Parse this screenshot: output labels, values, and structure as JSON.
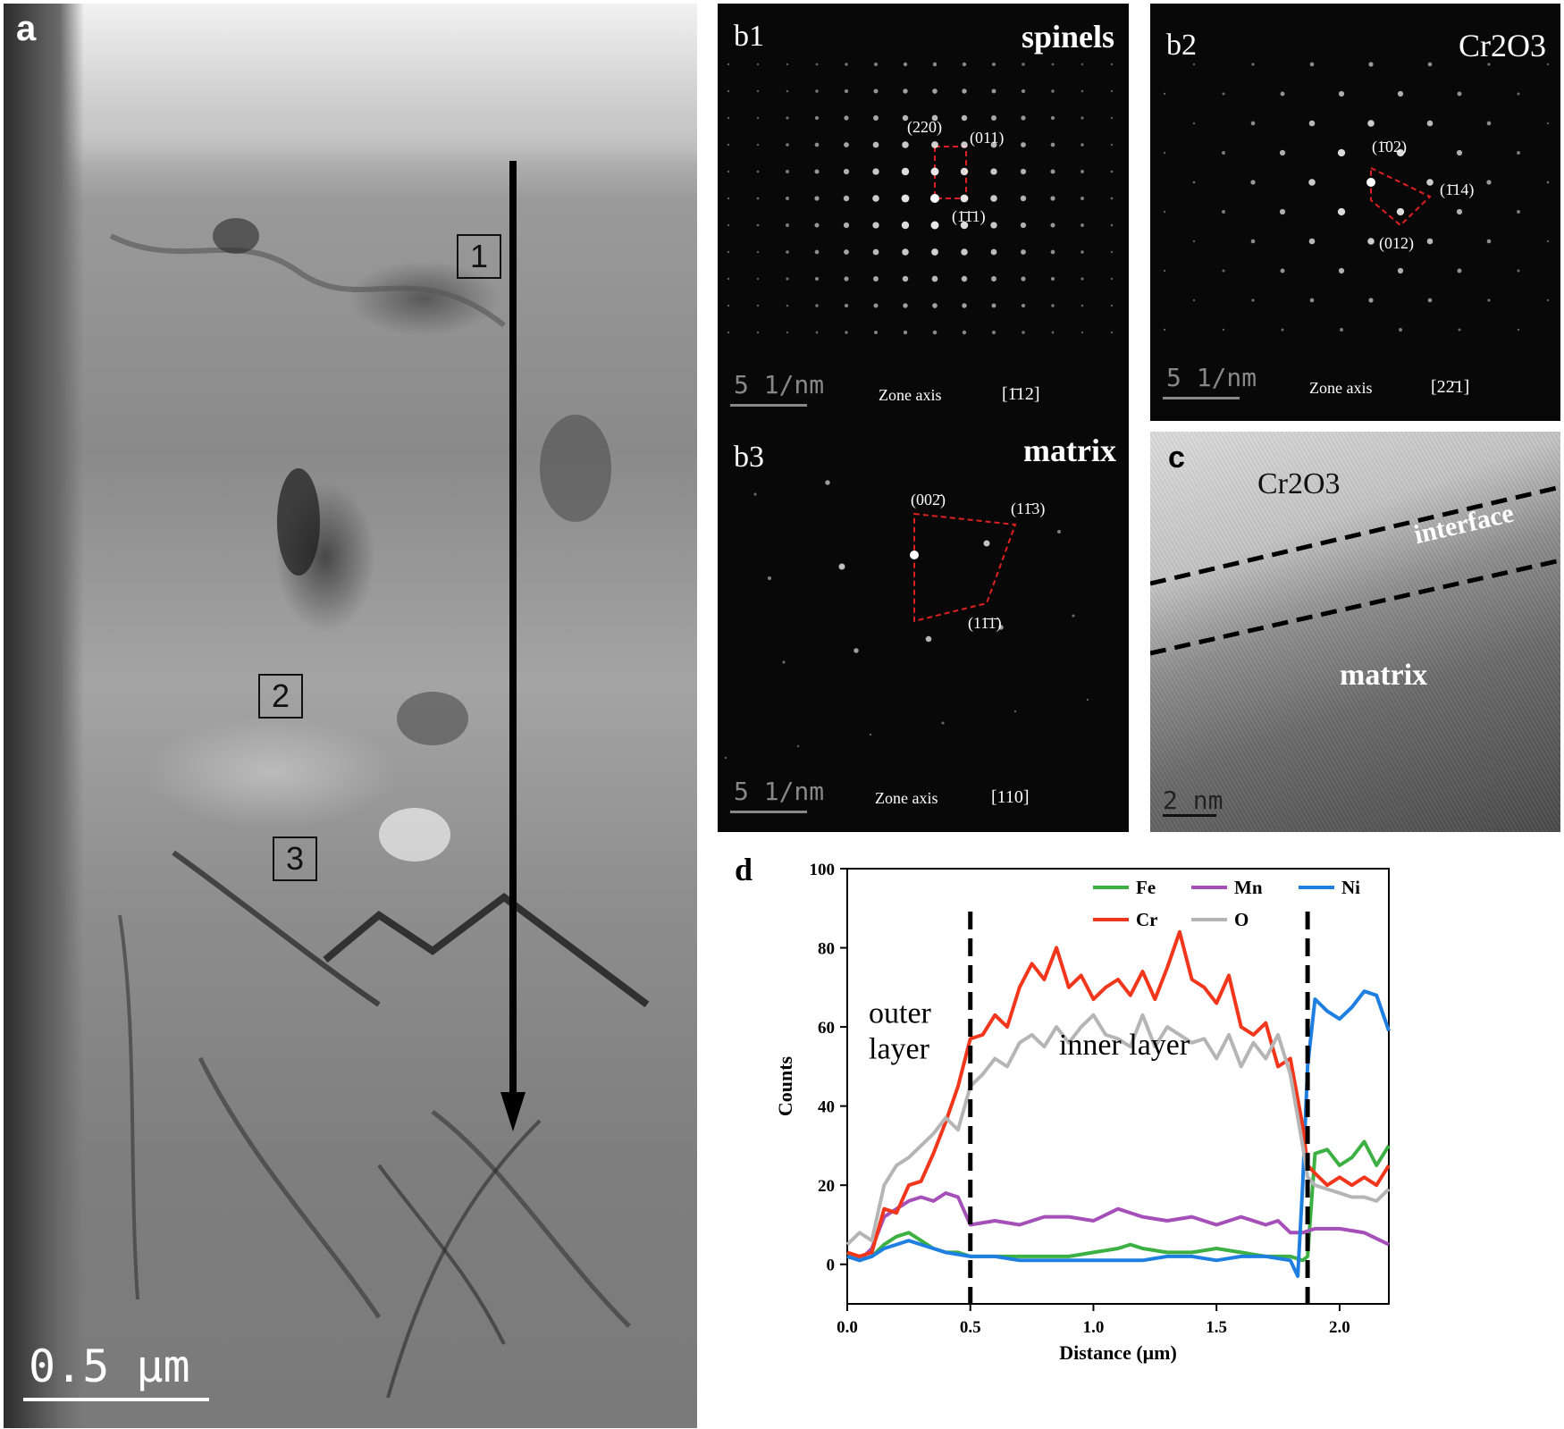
{
  "panel_a": {
    "label": "a",
    "boxes": [
      "1",
      "2",
      "3"
    ],
    "scale_bar": "0.5  μm"
  },
  "panel_b1": {
    "label": "b1",
    "title": "spinels",
    "indices": [
      "(220)",
      "(011)",
      "(1̄1̄1)"
    ],
    "zone_label": "Zone axis",
    "zone_index": "[1̄12]",
    "scale_bar": "5 1/nm"
  },
  "panel_b2": {
    "label": "b2",
    "title": "Cr2O3",
    "indices": [
      "(1̄02)",
      "(1̄14)",
      "(012)"
    ],
    "zone_label": "Zone axis",
    "zone_index": "[22̄1]",
    "scale_bar": "5 1/nm"
  },
  "panel_b3": {
    "label": "b3",
    "title": "matrix",
    "indices": [
      "(002̄)",
      "(11̄3)",
      "(11̄1̄)"
    ],
    "zone_label": "Zone axis",
    "zone_index": "[110]",
    "scale_bar": "5 1/nm"
  },
  "panel_c": {
    "label": "c",
    "top_label": "Cr2O3",
    "interface_label": "interface",
    "bottom_label": "matrix",
    "scale_bar": "2  nm"
  },
  "panel_d": {
    "label": "d",
    "region_labels": [
      "outer",
      "layer",
      "inner layer"
    ]
  },
  "chart_data": {
    "type": "line",
    "xlabel": "Distance (μm)",
    "ylabel": "Counts",
    "xlim": [
      0,
      2.2
    ],
    "ylim": [
      -10,
      100
    ],
    "xticks": [
      "0.0",
      "0.5",
      "1.0",
      "1.5",
      "2.0"
    ],
    "yticks": [
      "0",
      "20",
      "40",
      "60",
      "80",
      "100"
    ],
    "dividers": [
      0.5,
      1.87
    ],
    "legend": [
      "Fe",
      "Mn",
      "Ni",
      "Cr",
      "O"
    ],
    "legend_position": "top-right",
    "colors": {
      "Fe": "#3cb043",
      "Mn": "#a450b8",
      "Ni": "#1e7fe0",
      "Cr": "#f2361c",
      "O": "#b5b5b5"
    },
    "series": [
      {
        "name": "Fe",
        "x": [
          0,
          0.05,
          0.1,
          0.15,
          0.2,
          0.25,
          0.3,
          0.35,
          0.4,
          0.45,
          0.5,
          0.6,
          0.7,
          0.8,
          0.9,
          1.0,
          1.1,
          1.15,
          1.2,
          1.3,
          1.4,
          1.5,
          1.6,
          1.7,
          1.8,
          1.85,
          1.87,
          1.9,
          1.95,
          2.0,
          2.05,
          2.1,
          2.15,
          2.2
        ],
        "y": [
          3,
          1,
          2,
          5,
          7,
          8,
          6,
          4,
          3,
          3,
          2,
          2,
          2,
          2,
          2,
          3,
          4,
          5,
          4,
          3,
          3,
          4,
          3,
          2,
          2,
          1,
          2,
          28,
          29,
          25,
          27,
          31,
          25,
          30
        ]
      },
      {
        "name": "Mn",
        "x": [
          0,
          0.05,
          0.1,
          0.15,
          0.2,
          0.25,
          0.3,
          0.35,
          0.4,
          0.45,
          0.5,
          0.6,
          0.7,
          0.8,
          0.9,
          1.0,
          1.1,
          1.2,
          1.3,
          1.4,
          1.5,
          1.6,
          1.7,
          1.75,
          1.8,
          1.85,
          1.9,
          2.0,
          2.1,
          2.2
        ],
        "y": [
          2,
          1,
          4,
          12,
          14,
          16,
          17,
          16,
          18,
          17,
          10,
          11,
          10,
          12,
          12,
          11,
          14,
          12,
          11,
          12,
          10,
          12,
          10,
          11,
          8,
          8,
          9,
          9,
          8,
          5
        ]
      },
      {
        "name": "Ni",
        "x": [
          0,
          0.05,
          0.1,
          0.15,
          0.2,
          0.25,
          0.3,
          0.4,
          0.5,
          0.6,
          0.7,
          0.8,
          0.9,
          1.0,
          1.1,
          1.2,
          1.3,
          1.4,
          1.5,
          1.6,
          1.7,
          1.8,
          1.83,
          1.85,
          1.87,
          1.9,
          1.95,
          2.0,
          2.05,
          2.1,
          2.15,
          2.2
        ],
        "y": [
          2,
          1,
          2,
          4,
          5,
          6,
          5,
          3,
          2,
          2,
          1,
          1,
          1,
          1,
          1,
          1,
          2,
          2,
          1,
          2,
          2,
          1,
          -3,
          20,
          50,
          67,
          64,
          62,
          65,
          69,
          68,
          59
        ]
      },
      {
        "name": "Cr",
        "x": [
          0,
          0.05,
          0.1,
          0.15,
          0.2,
          0.25,
          0.3,
          0.35,
          0.4,
          0.45,
          0.5,
          0.55,
          0.6,
          0.65,
          0.7,
          0.75,
          0.8,
          0.85,
          0.9,
          0.95,
          1.0,
          1.05,
          1.1,
          1.15,
          1.2,
          1.25,
          1.3,
          1.35,
          1.4,
          1.45,
          1.5,
          1.55,
          1.6,
          1.65,
          1.7,
          1.75,
          1.8,
          1.85,
          1.87,
          1.9,
          1.95,
          2.0,
          2.05,
          2.1,
          2.15,
          2.2
        ],
        "y": [
          3,
          2,
          3,
          14,
          13,
          20,
          21,
          28,
          36,
          45,
          57,
          58,
          63,
          60,
          70,
          76,
          72,
          80,
          70,
          73,
          67,
          70,
          72,
          68,
          74,
          67,
          75,
          84,
          72,
          70,
          66,
          73,
          60,
          58,
          61,
          50,
          52,
          35,
          25,
          23,
          20,
          22,
          20,
          22,
          20,
          25
        ]
      },
      {
        "name": "O",
        "x": [
          0,
          0.05,
          0.1,
          0.15,
          0.2,
          0.25,
          0.3,
          0.35,
          0.4,
          0.45,
          0.5,
          0.55,
          0.6,
          0.65,
          0.7,
          0.75,
          0.8,
          0.85,
          0.9,
          0.95,
          1.0,
          1.05,
          1.1,
          1.15,
          1.2,
          1.25,
          1.3,
          1.35,
          1.4,
          1.45,
          1.5,
          1.55,
          1.6,
          1.65,
          1.7,
          1.75,
          1.8,
          1.85,
          1.87,
          1.9,
          1.95,
          2.0,
          2.05,
          2.1,
          2.15,
          2.2
        ],
        "y": [
          5,
          8,
          6,
          20,
          25,
          27,
          30,
          33,
          37,
          34,
          45,
          48,
          52,
          50,
          56,
          58,
          55,
          60,
          56,
          60,
          63,
          58,
          57,
          55,
          63,
          55,
          60,
          58,
          56,
          57,
          52,
          58,
          50,
          56,
          52,
          58,
          48,
          30,
          22,
          20,
          19,
          18,
          17,
          17,
          16,
          19
        ]
      }
    ]
  }
}
